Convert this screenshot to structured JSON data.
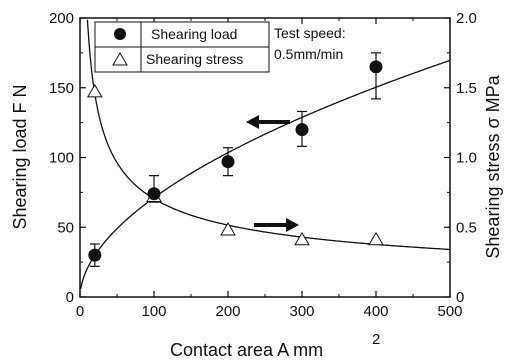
{
  "chart_data": {
    "type": "scatter",
    "xlabel": "Contact  area A  mm",
    "xlabel_superscript": "2",
    "ylabel_left": "Shearing load  F  N",
    "ylabel_right": "Shearing stress  σ  MPa",
    "xlim": [
      0,
      500
    ],
    "ylim_left": [
      0,
      200
    ],
    "ylim_right": [
      0,
      2.0
    ],
    "x_ticks": [
      "0",
      "100",
      "200",
      "300",
      "400",
      "500"
    ],
    "y_left_ticks": [
      "0",
      "50",
      "100",
      "150",
      "200"
    ],
    "y_right_ticks": [
      "0",
      "0.5",
      "1.0",
      "1.5",
      "2.0"
    ],
    "grid": false,
    "legend_position": "top-left",
    "annotation": [
      "Test speed:",
      "0.5mm/min"
    ],
    "series": [
      {
        "name": "Shearing load",
        "marker": "filled-circle",
        "axis": "left",
        "x": [
          20,
          100,
          200,
          300,
          400
        ],
        "y": [
          30,
          74,
          97,
          120,
          165
        ],
        "err_low": [
          8,
          6,
          10,
          12,
          23
        ],
        "err_high": [
          8,
          13,
          10,
          13,
          10
        ],
        "fit": "power"
      },
      {
        "name": "Shearing stress",
        "marker": "open-triangle",
        "axis": "right",
        "x": [
          20,
          100,
          200,
          300,
          400
        ],
        "y": [
          1.47,
          0.72,
          0.48,
          0.41,
          0.41
        ],
        "fit": "power"
      }
    ],
    "arrows": [
      {
        "direction": "left",
        "points_to": "left-axis",
        "near_series": "Shearing load"
      },
      {
        "direction": "right",
        "points_to": "right-axis",
        "near_series": "Shearing stress"
      }
    ],
    "colors": {
      "ink": "#111111",
      "background": "#ffffff"
    }
  }
}
